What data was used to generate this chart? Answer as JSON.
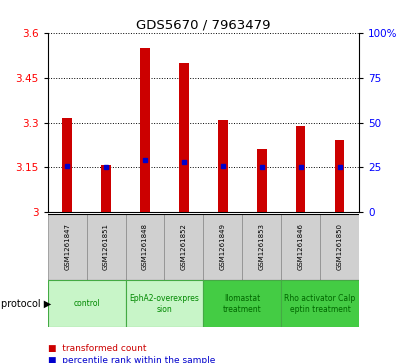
{
  "title": "GDS5670 / 7963479",
  "samples": [
    "GSM1261847",
    "GSM1261851",
    "GSM1261848",
    "GSM1261852",
    "GSM1261849",
    "GSM1261853",
    "GSM1261846",
    "GSM1261850"
  ],
  "x_tick_labels": [
    "1847",
    "1851",
    "1848",
    "1852",
    "1849",
    "1853",
    "1846",
    "1850"
  ],
  "transformed_counts": [
    3.315,
    3.158,
    3.55,
    3.5,
    3.31,
    3.21,
    3.29,
    3.24
  ],
  "percentile_ranks": [
    26,
    25,
    29,
    28,
    26,
    25,
    25,
    25
  ],
  "y_min": 3.0,
  "y_max": 3.6,
  "y_ticks": [
    3.0,
    3.15,
    3.3,
    3.45,
    3.6
  ],
  "y_tick_labels": [
    "3",
    "3.15",
    "3.3",
    "3.45",
    "3.6"
  ],
  "right_y_ticks": [
    0,
    25,
    50,
    75,
    100
  ],
  "right_y_labels": [
    "0",
    "25",
    "50",
    "75",
    "100%"
  ],
  "bar_color": "#cc0000",
  "marker_color": "#0000cc",
  "bar_width": 0.25,
  "groups": [
    {
      "label": "control",
      "start": 0,
      "end": 1,
      "color": "#c8f5c8",
      "text_color": "#008800"
    },
    {
      "label": "EphA2-overexpres\nsion",
      "start": 2,
      "end": 3,
      "color": "#c8f5c8",
      "text_color": "#008800"
    },
    {
      "label": "Ilomastat\ntreatment",
      "start": 4,
      "end": 5,
      "color": "#44cc44",
      "text_color": "#006600"
    },
    {
      "label": "Rho activator Calp\neptin treatment",
      "start": 6,
      "end": 7,
      "color": "#44cc44",
      "text_color": "#006600"
    }
  ],
  "protocol_label": "protocol ▶",
  "legend_red": "transformed count",
  "legend_blue": "percentile rank within the sample",
  "bg_color": "#ffffff",
  "plot_bg": "#ffffff",
  "grid_color": "black",
  "label_cell_color": "#d0d0d0"
}
